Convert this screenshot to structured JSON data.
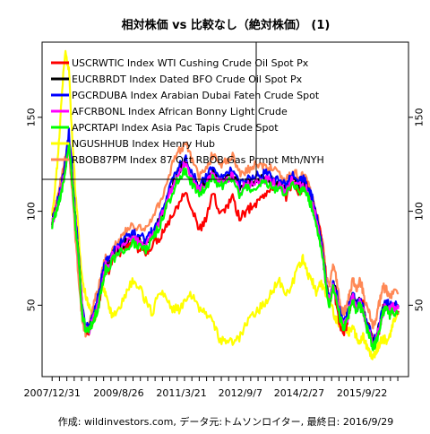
{
  "chart_data": {
    "type": "line",
    "title": "相対株価 vs 比較なし（絶対株価） (1)",
    "caption": "作成: wildinvestors.com, データ元:トムソンロイター, 最終日: 2016/9/29",
    "xlabel": "",
    "ylabel": "",
    "x_tick_labels": [
      "2007/12/31",
      "2009/8/26",
      "2011/3/21",
      "2012/9/7",
      "2014/2/27",
      "2015/9/22"
    ],
    "x_tick_values": [
      0,
      19.9,
      38.7,
      56.3,
      73.9,
      92.7
    ],
    "xlim": [
      -3,
      106.6
    ],
    "y_ticks": [
      50,
      100,
      150
    ],
    "ylim": [
      12,
      190
    ],
    "grid": false,
    "legend": {
      "placement": "top-left"
    },
    "series": [
      {
        "name": "USCRWTIC Index WTI Cushing Crude Oil Spot Px",
        "color": "#ff0000",
        "x": [
          0,
          1,
          2,
          3,
          4,
          5,
          6,
          7,
          8,
          9,
          10,
          11,
          12,
          13,
          14,
          15,
          16,
          17,
          18,
          20,
          22,
          24,
          26,
          28,
          30,
          32,
          34,
          36,
          38,
          40,
          42,
          44,
          46,
          48,
          50,
          52,
          54,
          56,
          58,
          60,
          62,
          64,
          66,
          68,
          70,
          72,
          74,
          75,
          76,
          77,
          78,
          79,
          80,
          81,
          82,
          83,
          84,
          85,
          86,
          87,
          88,
          89,
          90,
          91,
          92,
          93,
          94,
          95,
          96,
          97,
          98,
          99,
          100,
          101,
          102,
          103.6
        ],
        "y": [
          95,
          100,
          107,
          115,
          125,
          140,
          120,
          95,
          75,
          48,
          38,
          36,
          41,
          45,
          50,
          62,
          70,
          68,
          75,
          78,
          80,
          82,
          80,
          78,
          82,
          86,
          92,
          98,
          105,
          112,
          100,
          90,
          95,
          110,
          100,
          102,
          108,
          96,
          100,
          103,
          106,
          110,
          112,
          115,
          108,
          116,
          110,
          112,
          115,
          108,
          104,
          98,
          90,
          80,
          62,
          52,
          60,
          50,
          40,
          35,
          38,
          48,
          55,
          48,
          52,
          50,
          40,
          38,
          30,
          32,
          38,
          48,
          50,
          46,
          48,
          47
        ]
      },
      {
        "name": "EUCRBRDT Index Dated BFO Crude Oil Spot Px",
        "color": "#000000",
        "x": [
          0,
          1,
          2,
          3,
          4,
          5,
          6,
          7,
          8,
          9,
          10,
          11,
          12,
          13,
          14,
          15,
          16,
          17,
          18,
          20,
          22,
          24,
          26,
          28,
          30,
          32,
          34,
          36,
          38,
          40,
          42,
          44,
          46,
          48,
          50,
          52,
          54,
          56,
          58,
          60,
          62,
          64,
          66,
          68,
          70,
          72,
          74,
          75,
          76,
          77,
          78,
          79,
          80,
          81,
          82,
          83,
          84,
          85,
          86,
          87,
          88,
          89,
          90,
          91,
          92,
          93,
          94,
          95,
          96,
          97,
          98,
          99,
          100,
          101,
          102,
          103.6
        ],
        "y": [
          95,
          100,
          106,
          114,
          124,
          138,
          118,
          94,
          74,
          47,
          38,
          37,
          42,
          47,
          53,
          64,
          72,
          71,
          77,
          81,
          84,
          86,
          85,
          83,
          88,
          95,
          104,
          114,
          122,
          126,
          117,
          112,
          116,
          121,
          116,
          118,
          120,
          112,
          115,
          116,
          117,
          118,
          116,
          114,
          112,
          118,
          114,
          115,
          113,
          108,
          104,
          97,
          88,
          76,
          60,
          52,
          62,
          56,
          46,
          40,
          42,
          50,
          55,
          49,
          52,
          48,
          40,
          36,
          29,
          33,
          40,
          48,
          51,
          48,
          50,
          49
        ]
      },
      {
        "name": "PGCRDUBA Index Arabian Dubai Fateh Crude Spot",
        "color": "#0000ff",
        "x": [
          0,
          1,
          2,
          3,
          4,
          5,
          6,
          7,
          8,
          9,
          10,
          11,
          12,
          13,
          14,
          15,
          16,
          17,
          18,
          20,
          22,
          24,
          26,
          28,
          30,
          32,
          34,
          36,
          38,
          40,
          42,
          44,
          46,
          48,
          50,
          52,
          54,
          56,
          58,
          60,
          62,
          64,
          66,
          68,
          70,
          72,
          74,
          75,
          76,
          77,
          78,
          79,
          80,
          81,
          82,
          83,
          84,
          85,
          86,
          87,
          88,
          89,
          90,
          91,
          92,
          93,
          94,
          95,
          96,
          97,
          98,
          99,
          100,
          101,
          102,
          103.6
        ],
        "y": [
          96,
          101,
          108,
          116,
          126,
          142,
          122,
          96,
          76,
          48,
          39,
          38,
          43,
          49,
          56,
          66,
          74,
          73,
          79,
          83,
          86,
          88,
          87,
          85,
          90,
          97,
          106,
          116,
          124,
          128,
          120,
          114,
          118,
          123,
          118,
          120,
          122,
          114,
          117,
          118,
          119,
          120,
          118,
          116,
          114,
          119,
          116,
          117,
          115,
          110,
          106,
          99,
          90,
          78,
          62,
          53,
          63,
          57,
          47,
          41,
          43,
          51,
          56,
          50,
          53,
          49,
          41,
          37,
          30,
          34,
          41,
          49,
          52,
          49,
          51,
          50
        ]
      },
      {
        "name": "AFCRBONL Index African Bonny Light Crude",
        "color": "#ff00ff",
        "x": [
          0,
          1,
          2,
          3,
          4,
          5,
          6,
          7,
          8,
          9,
          10,
          11,
          12,
          13,
          14,
          15,
          16,
          17,
          18,
          20,
          22,
          24,
          26,
          28,
          30,
          32,
          34,
          36,
          38,
          40,
          42,
          44,
          46,
          48,
          50,
          52,
          54,
          56,
          58,
          60,
          62,
          64,
          66,
          68,
          70,
          72,
          74,
          75,
          76,
          77,
          78,
          79,
          80,
          81,
          82,
          83,
          84,
          85,
          86,
          87,
          88,
          89,
          90,
          91,
          92,
          93,
          94,
          95,
          96,
          97,
          98,
          99,
          100,
          101,
          102,
          103.6
        ],
        "y": [
          94,
          99,
          105,
          113,
          123,
          137,
          117,
          93,
          73,
          46,
          37,
          36,
          41,
          46,
          52,
          63,
          71,
          70,
          76,
          80,
          83,
          85,
          84,
          82,
          87,
          94,
          103,
          113,
          121,
          125,
          116,
          111,
          115,
          120,
          115,
          117,
          119,
          111,
          114,
          115,
          116,
          117,
          115,
          113,
          111,
          117,
          113,
          114,
          112,
          107,
          103,
          96,
          87,
          75,
          59,
          51,
          61,
          55,
          45,
          39,
          41,
          49,
          54,
          48,
          51,
          47,
          39,
          35,
          28,
          32,
          39,
          47,
          50,
          47,
          49,
          48
        ]
      },
      {
        "name": "APCRTAPI Index Asia Pac Tapis Crude Spot",
        "color": "#00ff00",
        "x": [
          0,
          1,
          2,
          3,
          4,
          5,
          6,
          7,
          8,
          9,
          10,
          11,
          12,
          13,
          14,
          15,
          16,
          17,
          18,
          20,
          22,
          24,
          26,
          28,
          30,
          32,
          34,
          36,
          38,
          40,
          42,
          44,
          46,
          48,
          50,
          52,
          54,
          56,
          58,
          60,
          62,
          64,
          66,
          68,
          70,
          72,
          74,
          75,
          76,
          77,
          78,
          79,
          80,
          81,
          82,
          83,
          84,
          85,
          86,
          87,
          88,
          89,
          90,
          91,
          92,
          93,
          94,
          95,
          96,
          97,
          98,
          99,
          100,
          101,
          102,
          103.6
        ],
        "y": [
          93,
          98,
          104,
          112,
          122,
          136,
          116,
          92,
          72,
          45,
          37,
          36,
          40,
          45,
          51,
          61,
          69,
          68,
          74,
          78,
          81,
          83,
          82,
          80,
          85,
          92,
          101,
          110,
          118,
          122,
          114,
          109,
          113,
          118,
          113,
          115,
          117,
          109,
          112,
          113,
          114,
          115,
          113,
          111,
          109,
          115,
          111,
          112,
          110,
          105,
          101,
          94,
          85,
          74,
          58,
          50,
          60,
          54,
          44,
          38,
          40,
          48,
          53,
          47,
          50,
          46,
          38,
          34,
          27,
          31,
          38,
          46,
          48,
          45,
          47,
          46
        ]
      },
      {
        "name": "NGUSHHUB Index Henry Hub",
        "color": "#ffff00",
        "x": [
          0,
          1,
          2,
          3,
          4,
          5,
          6,
          7,
          8,
          9,
          10,
          11,
          12,
          13,
          14,
          15,
          16,
          17,
          18,
          20,
          22,
          24,
          26,
          28,
          30,
          32,
          34,
          36,
          38,
          40,
          42,
          44,
          46,
          48,
          50,
          52,
          54,
          56,
          58,
          60,
          62,
          64,
          66,
          68,
          70,
          72,
          74,
          75,
          76,
          77,
          78,
          79,
          80,
          81,
          82,
          83,
          84,
          85,
          86,
          87,
          88,
          89,
          90,
          91,
          92,
          93,
          94,
          95,
          96,
          97,
          98,
          99,
          100,
          101,
          102,
          103.6
        ],
        "y": [
          100,
          115,
          135,
          165,
          185,
          175,
          140,
          110,
          85,
          65,
          55,
          50,
          45,
          42,
          52,
          62,
          55,
          48,
          45,
          47,
          56,
          63,
          60,
          52,
          46,
          58,
          56,
          48,
          48,
          52,
          56,
          48,
          46,
          42,
          32,
          30,
          31,
          33,
          40,
          45,
          48,
          52,
          58,
          63,
          55,
          62,
          72,
          75,
          70,
          64,
          62,
          57,
          62,
          60,
          55,
          52,
          47,
          42,
          40,
          38,
          37,
          36,
          38,
          33,
          31,
          34,
          28,
          24,
          22,
          26,
          30,
          33,
          30,
          34,
          40,
          45
        ]
      },
      {
        "name": "RBOB87PM Index 87 Oct RBOB Gas Prmpt Mth/NYH",
        "color": "#ff8855",
        "x": [
          0,
          1,
          2,
          3,
          4,
          5,
          6,
          7,
          8,
          9,
          10,
          11,
          12,
          13,
          14,
          15,
          16,
          17,
          18,
          20,
          22,
          24,
          26,
          28,
          30,
          32,
          34,
          36,
          38,
          40,
          42,
          44,
          46,
          48,
          50,
          52,
          54,
          56,
          58,
          60,
          62,
          64,
          66,
          68,
          70,
          72,
          74,
          75,
          76,
          77,
          78,
          79,
          80,
          81,
          82,
          83,
          84,
          85,
          86,
          87,
          88,
          89,
          90,
          91,
          92,
          93,
          94,
          95,
          96,
          97,
          98,
          99,
          100,
          101,
          102,
          103.6
        ],
        "y": [
          96,
          102,
          110,
          120,
          128,
          135,
          110,
          85,
          62,
          42,
          35,
          40,
          47,
          55,
          60,
          68,
          75,
          74,
          80,
          85,
          89,
          92,
          91,
          90,
          96,
          104,
          114,
          125,
          132,
          136,
          126,
          118,
          122,
          130,
          124,
          126,
          130,
          120,
          122,
          124,
          125,
          124,
          122,
          120,
          116,
          122,
          118,
          119,
          117,
          112,
          108,
          100,
          93,
          82,
          66,
          60,
          70,
          65,
          52,
          46,
          48,
          56,
          63,
          58,
          63,
          58,
          50,
          46,
          38,
          44,
          52,
          60,
          58,
          55,
          57,
          56
        ]
      }
    ]
  }
}
